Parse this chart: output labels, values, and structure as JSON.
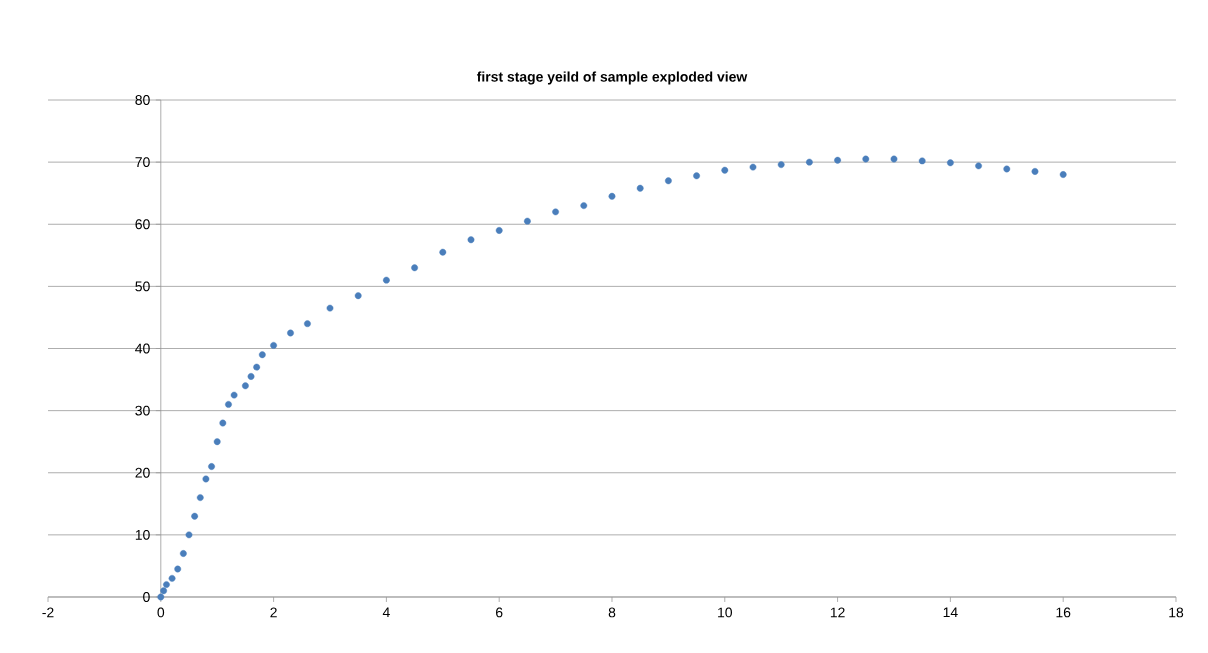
{
  "chart_data": {
    "type": "scatter",
    "title": "first stage yeild of sample exploded view",
    "grid": "y",
    "xlim": [
      -2,
      18
    ],
    "xticks": [
      -2,
      0,
      2,
      4,
      6,
      8,
      10,
      12,
      14,
      16,
      18
    ],
    "ylim": [
      0,
      80
    ],
    "yticks": [
      0,
      10,
      20,
      30,
      40,
      50,
      60,
      70,
      80
    ],
    "series": [
      {
        "color": "#4a7ebb",
        "x": [
          0,
          0.05,
          0.1,
          0.2,
          0.3,
          0.4,
          0.5,
          0.6,
          0.7,
          0.8,
          0.9,
          1.0,
          1.1,
          1.2,
          1.3,
          1.5,
          1.6,
          1.7,
          1.8,
          2.0,
          2.3,
          2.6,
          3,
          3.5,
          4,
          4.5,
          5,
          5.5,
          6,
          6.5,
          7,
          7.5,
          8,
          8.5,
          9,
          9.5,
          10,
          10.5,
          11,
          11.5,
          12,
          12.5,
          13,
          13.5,
          14,
          14.5,
          15,
          15.5,
          16
        ],
        "values": [
          0,
          1,
          2,
          3,
          4.5,
          7,
          10,
          13,
          16,
          19,
          21,
          25,
          28,
          31,
          32.5,
          34,
          35.5,
          37,
          39,
          40.5,
          42.5,
          44,
          46.5,
          48.5,
          51,
          53,
          55.5,
          57.5,
          59,
          60.5,
          62,
          63,
          64.5,
          65.8,
          67,
          67.8,
          68.7,
          69.2,
          69.6,
          70,
          70.3,
          70.5,
          70.5,
          70.2,
          69.9,
          69.4,
          68.9,
          68.5,
          68
        ]
      }
    ]
  }
}
